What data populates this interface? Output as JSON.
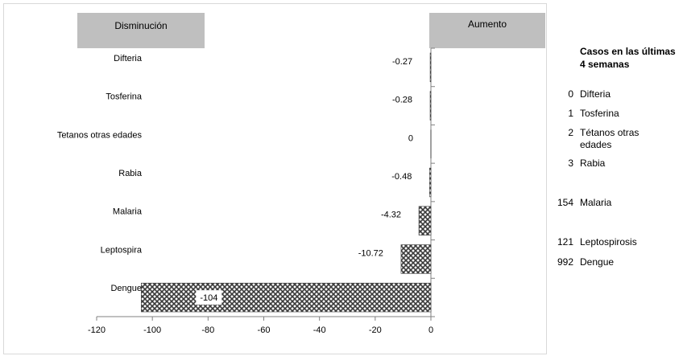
{
  "headers": {
    "decrease": "Disminución",
    "increase": "Aumento"
  },
  "side_panel": {
    "title": "Casos en las últimas 4 semanas",
    "rows": [
      {
        "count": "0",
        "name": "Difteria"
      },
      {
        "count": "1",
        "name": "Tosferina"
      },
      {
        "count": "2",
        "name": "Tétanos otras edades"
      },
      {
        "count": "3",
        "name": "Rabia"
      },
      {
        "count": "154",
        "name": "Malaria"
      },
      {
        "count": "121",
        "name": "Leptospirosis"
      },
      {
        "count": "992",
        "name": "Dengue"
      }
    ]
  },
  "chart_data": {
    "type": "bar",
    "orientation": "horizontal",
    "categories": [
      "Difteria",
      "Tosferina",
      "Tetanos otras edades",
      "Rabia",
      "Malaria",
      "Leptospira",
      "Dengue"
    ],
    "values": [
      -0.27,
      -0.28,
      0,
      -0.48,
      -4.32,
      -10.72,
      -104
    ],
    "value_labels": [
      "-0.27",
      "-0.28",
      "0",
      "-0.48",
      "-4.32",
      "-10.72",
      "-104"
    ],
    "xlim": [
      -120,
      0
    ],
    "xticks": [
      -120,
      -100,
      -80,
      -60,
      -40,
      -20,
      0
    ],
    "bar_fill": "crosshatch pattern, dark gray on white",
    "bar_colors": {
      "dark": "#3a3a3a",
      "light": "#ffffff",
      "stroke": "#404040"
    },
    "grid": false
  }
}
